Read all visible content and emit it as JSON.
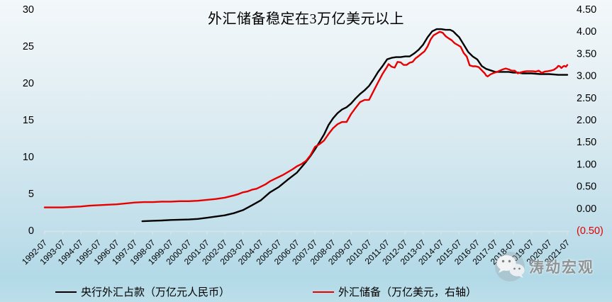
{
  "chart_data": {
    "type": "line",
    "title": "外汇储备稳定在3万亿美元以上",
    "categories": [
      "1992-07",
      "1993-07",
      "1994-07",
      "1995-07",
      "1996-07",
      "1997-07",
      "1998-07",
      "1999-07",
      "2000-07",
      "2001-07",
      "2002-07",
      "2003-07",
      "2004-07",
      "2005-07",
      "2006-07",
      "2007-07",
      "2008-07",
      "2009-07",
      "2010-07",
      "2011-07",
      "2012-07",
      "2013-07",
      "2014-07",
      "2015-07",
      "2016-07",
      "2017-07",
      "2018-07",
      "2019-07",
      "2020-07",
      "2021-07"
    ],
    "x_range": [
      1992.5,
      2021.5
    ],
    "left_axis": {
      "labels": [
        "30",
        "25",
        "20",
        "15",
        "10",
        "5",
        "0"
      ],
      "min": 0,
      "max": 30,
      "color": "#000000"
    },
    "right_axis": {
      "labels": [
        "4.50",
        "4.00",
        "3.50",
        "3.00",
        "2.50",
        "2.00",
        "1.50",
        "1.00",
        "0.50",
        "0.00",
        "(0.50)"
      ],
      "min": -0.5,
      "max": 4.5,
      "color": "#000000",
      "negative_label_color": "#e00000"
    },
    "axis_line_color": "#d9e4e8",
    "legend_position": "bottom",
    "grid": false,
    "series": [
      {
        "name": "央行外汇占款（万亿元人民币）",
        "color": "#000000",
        "axis": "left",
        "points": [
          [
            1997.92,
            1.24
          ],
          [
            1998.5,
            1.31
          ],
          [
            1999.0,
            1.35
          ],
          [
            1999.5,
            1.41
          ],
          [
            2000.0,
            1.45
          ],
          [
            2000.5,
            1.48
          ],
          [
            2001.0,
            1.56
          ],
          [
            2001.5,
            1.71
          ],
          [
            2002.0,
            1.88
          ],
          [
            2002.5,
            2.05
          ],
          [
            2003.0,
            2.34
          ],
          [
            2003.5,
            2.75
          ],
          [
            2004.0,
            3.4
          ],
          [
            2004.5,
            4.1
          ],
          [
            2005.0,
            5.16
          ],
          [
            2005.5,
            5.9
          ],
          [
            2006.0,
            6.9
          ],
          [
            2006.5,
            7.85
          ],
          [
            2007.0,
            9.3
          ],
          [
            2007.25,
            10.1
          ],
          [
            2007.5,
            11.0
          ],
          [
            2007.75,
            12.0
          ],
          [
            2008.0,
            13.0
          ],
          [
            2008.25,
            14.3
          ],
          [
            2008.5,
            15.2
          ],
          [
            2008.75,
            15.9
          ],
          [
            2009.0,
            16.4
          ],
          [
            2009.25,
            16.7
          ],
          [
            2009.5,
            17.2
          ],
          [
            2009.75,
            17.9
          ],
          [
            2010.0,
            18.5
          ],
          [
            2010.25,
            19.0
          ],
          [
            2010.5,
            19.6
          ],
          [
            2010.75,
            20.5
          ],
          [
            2011.0,
            21.5
          ],
          [
            2011.25,
            22.3
          ],
          [
            2011.5,
            23.2
          ],
          [
            2011.75,
            23.4
          ],
          [
            2012.0,
            23.5
          ],
          [
            2012.25,
            23.5
          ],
          [
            2012.5,
            23.6
          ],
          [
            2012.75,
            23.6
          ],
          [
            2013.0,
            24.0
          ],
          [
            2013.25,
            24.5
          ],
          [
            2013.5,
            25.2
          ],
          [
            2013.75,
            26.2
          ],
          [
            2014.0,
            27.0
          ],
          [
            2014.25,
            27.3
          ],
          [
            2014.5,
            27.3
          ],
          [
            2014.75,
            27.2
          ],
          [
            2015.0,
            27.2
          ],
          [
            2015.17,
            27.0
          ],
          [
            2015.33,
            26.6
          ],
          [
            2015.5,
            26.2
          ],
          [
            2015.75,
            25.2
          ],
          [
            2016.0,
            24.2
          ],
          [
            2016.25,
            23.6
          ],
          [
            2016.5,
            23.2
          ],
          [
            2016.75,
            22.3
          ],
          [
            2017.0,
            21.9
          ],
          [
            2017.25,
            21.7
          ],
          [
            2017.5,
            21.5
          ],
          [
            2017.75,
            21.5
          ],
          [
            2018.0,
            21.5
          ],
          [
            2018.25,
            21.5
          ],
          [
            2018.5,
            21.4
          ],
          [
            2018.75,
            21.4
          ],
          [
            2019.0,
            21.3
          ],
          [
            2019.5,
            21.3
          ],
          [
            2020.0,
            21.2
          ],
          [
            2020.5,
            21.2
          ],
          [
            2021.0,
            21.1
          ],
          [
            2021.5,
            21.1
          ]
        ]
      },
      {
        "name": "外汇储备（万亿美元，右轴）",
        "color": "#e80000",
        "axis": "right",
        "points": [
          [
            1992.5,
            0.02
          ],
          [
            1993.0,
            0.02
          ],
          [
            1993.5,
            0.02
          ],
          [
            1994.0,
            0.03
          ],
          [
            1994.5,
            0.04
          ],
          [
            1995.0,
            0.06
          ],
          [
            1995.5,
            0.07
          ],
          [
            1996.0,
            0.08
          ],
          [
            1996.5,
            0.09
          ],
          [
            1997.0,
            0.11
          ],
          [
            1997.5,
            0.13
          ],
          [
            1998.0,
            0.14
          ],
          [
            1998.5,
            0.14
          ],
          [
            1999.0,
            0.15
          ],
          [
            1999.5,
            0.15
          ],
          [
            2000.0,
            0.16
          ],
          [
            2000.5,
            0.16
          ],
          [
            2001.0,
            0.17
          ],
          [
            2001.5,
            0.19
          ],
          [
            2002.0,
            0.21
          ],
          [
            2002.5,
            0.24
          ],
          [
            2003.0,
            0.29
          ],
          [
            2003.25,
            0.32
          ],
          [
            2003.5,
            0.36
          ],
          [
            2003.75,
            0.38
          ],
          [
            2004.0,
            0.42
          ],
          [
            2004.25,
            0.44
          ],
          [
            2004.5,
            0.49
          ],
          [
            2004.75,
            0.54
          ],
          [
            2005.0,
            0.61
          ],
          [
            2005.25,
            0.66
          ],
          [
            2005.5,
            0.71
          ],
          [
            2005.75,
            0.76
          ],
          [
            2006.0,
            0.82
          ],
          [
            2006.25,
            0.88
          ],
          [
            2006.5,
            0.95
          ],
          [
            2006.75,
            1.0
          ],
          [
            2007.0,
            1.07
          ],
          [
            2007.25,
            1.2
          ],
          [
            2007.5,
            1.39
          ],
          [
            2007.75,
            1.45
          ],
          [
            2008.0,
            1.53
          ],
          [
            2008.25,
            1.68
          ],
          [
            2008.5,
            1.81
          ],
          [
            2008.75,
            1.9
          ],
          [
            2009.0,
            1.95
          ],
          [
            2009.25,
            1.95
          ],
          [
            2009.5,
            2.13
          ],
          [
            2009.75,
            2.27
          ],
          [
            2010.0,
            2.4
          ],
          [
            2010.25,
            2.45
          ],
          [
            2010.5,
            2.45
          ],
          [
            2010.75,
            2.65
          ],
          [
            2011.0,
            2.85
          ],
          [
            2011.25,
            3.04
          ],
          [
            2011.5,
            3.2
          ],
          [
            2011.58,
            3.26
          ],
          [
            2011.75,
            3.2
          ],
          [
            2011.92,
            3.18
          ],
          [
            2012.08,
            3.31
          ],
          [
            2012.25,
            3.3
          ],
          [
            2012.42,
            3.24
          ],
          [
            2012.58,
            3.24
          ],
          [
            2012.75,
            3.29
          ],
          [
            2012.92,
            3.31
          ],
          [
            2013.08,
            3.39
          ],
          [
            2013.25,
            3.44
          ],
          [
            2013.42,
            3.5
          ],
          [
            2013.58,
            3.55
          ],
          [
            2013.75,
            3.66
          ],
          [
            2013.92,
            3.82
          ],
          [
            2014.08,
            3.91
          ],
          [
            2014.25,
            3.95
          ],
          [
            2014.42,
            3.99
          ],
          [
            2014.58,
            3.97
          ],
          [
            2014.75,
            3.89
          ],
          [
            2014.92,
            3.84
          ],
          [
            2015.08,
            3.8
          ],
          [
            2015.25,
            3.73
          ],
          [
            2015.42,
            3.69
          ],
          [
            2015.58,
            3.65
          ],
          [
            2015.75,
            3.51
          ],
          [
            2015.92,
            3.43
          ],
          [
            2016.0,
            3.33
          ],
          [
            2016.08,
            3.23
          ],
          [
            2016.25,
            3.21
          ],
          [
            2016.42,
            3.21
          ],
          [
            2016.58,
            3.19
          ],
          [
            2016.75,
            3.12
          ],
          [
            2016.92,
            3.05
          ],
          [
            2017.0,
            3.0
          ],
          [
            2017.08,
            2.98
          ],
          [
            2017.25,
            3.03
          ],
          [
            2017.42,
            3.06
          ],
          [
            2017.58,
            3.08
          ],
          [
            2017.75,
            3.11
          ],
          [
            2017.92,
            3.14
          ],
          [
            2018.08,
            3.16
          ],
          [
            2018.25,
            3.14
          ],
          [
            2018.42,
            3.11
          ],
          [
            2018.58,
            3.11
          ],
          [
            2018.75,
            3.05
          ],
          [
            2018.92,
            3.07
          ],
          [
            2019.08,
            3.09
          ],
          [
            2019.25,
            3.1
          ],
          [
            2019.42,
            3.1
          ],
          [
            2019.58,
            3.1
          ],
          [
            2019.75,
            3.09
          ],
          [
            2019.92,
            3.11
          ],
          [
            2020.08,
            3.06
          ],
          [
            2020.25,
            3.09
          ],
          [
            2020.42,
            3.1
          ],
          [
            2020.58,
            3.11
          ],
          [
            2020.75,
            3.13
          ],
          [
            2020.92,
            3.18
          ],
          [
            2021.0,
            3.22
          ],
          [
            2021.08,
            3.21
          ],
          [
            2021.17,
            3.17
          ],
          [
            2021.25,
            3.2
          ],
          [
            2021.33,
            3.22
          ],
          [
            2021.42,
            3.2
          ],
          [
            2021.5,
            3.24
          ]
        ]
      }
    ]
  },
  "watermark": {
    "text": "涛动宏观"
  }
}
